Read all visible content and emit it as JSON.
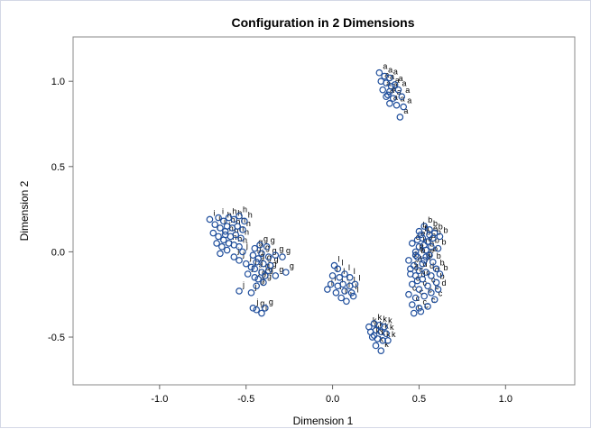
{
  "chart_data": {
    "type": "scatter",
    "title": "Configuration in 2 Dimensions",
    "xlabel": "Dimension 1",
    "ylabel": "Dimension 2",
    "xlim": [
      -1.5,
      1.4
    ],
    "ylim": [
      -0.78,
      1.26
    ],
    "xticks": [
      -1.0,
      -0.5,
      0.0,
      0.5,
      1.0
    ],
    "xtick_labels": [
      "-1.0",
      "-0.5",
      "0.0",
      "0.5",
      "1.0"
    ],
    "yticks": [
      -0.5,
      0.0,
      0.5,
      1.0
    ],
    "ytick_labels": [
      "-0.5",
      "0.0",
      "0.5",
      "1.0"
    ],
    "grid": false,
    "legend": false,
    "marker_color": "#1f4e9c",
    "points": [
      {
        "x": 0.27,
        "y": 1.05,
        "label": "a"
      },
      {
        "x": 0.3,
        "y": 1.03,
        "label": "a"
      },
      {
        "x": 0.33,
        "y": 1.02,
        "label": "a"
      },
      {
        "x": 0.28,
        "y": 1.0,
        "label": "a"
      },
      {
        "x": 0.31,
        "y": 0.99,
        "label": "a"
      },
      {
        "x": 0.36,
        "y": 0.98,
        "label": "a"
      },
      {
        "x": 0.29,
        "y": 0.95,
        "label": "a"
      },
      {
        "x": 0.33,
        "y": 0.94,
        "label": "a"
      },
      {
        "x": 0.38,
        "y": 0.95,
        "label": "a"
      },
      {
        "x": 0.31,
        "y": 0.91,
        "label": "a"
      },
      {
        "x": 0.35,
        "y": 0.9,
        "label": "a"
      },
      {
        "x": 0.4,
        "y": 0.91,
        "label": "a"
      },
      {
        "x": 0.33,
        "y": 0.87,
        "label": "a"
      },
      {
        "x": 0.37,
        "y": 0.86,
        "label": "a"
      },
      {
        "x": 0.41,
        "y": 0.85,
        "label": "a"
      },
      {
        "x": 0.39,
        "y": 0.79,
        "label": "a"
      },
      {
        "x": 0.32,
        "y": 0.92,
        "label": "a"
      },
      {
        "x": 0.34,
        "y": 0.97,
        "label": "a"
      },
      {
        "x": 0.5,
        "y": 0.12,
        "label": "b"
      },
      {
        "x": 0.53,
        "y": 0.15,
        "label": "b"
      },
      {
        "x": 0.56,
        "y": 0.13,
        "label": "b"
      },
      {
        "x": 0.59,
        "y": 0.11,
        "label": "b"
      },
      {
        "x": 0.52,
        "y": 0.08,
        "label": "b"
      },
      {
        "x": 0.55,
        "y": 0.06,
        "label": "b"
      },
      {
        "x": 0.58,
        "y": 0.08,
        "label": "b"
      },
      {
        "x": 0.62,
        "y": 0.09,
        "label": "b"
      },
      {
        "x": 0.5,
        "y": 0.03,
        "label": "b"
      },
      {
        "x": 0.54,
        "y": 0.01,
        "label": "b"
      },
      {
        "x": 0.57,
        "y": 0.03,
        "label": "b"
      },
      {
        "x": 0.61,
        "y": 0.02,
        "label": "b"
      },
      {
        "x": 0.49,
        "y": -0.03,
        "label": "b"
      },
      {
        "x": 0.53,
        "y": -0.05,
        "label": "b"
      },
      {
        "x": 0.58,
        "y": -0.06,
        "label": "b"
      },
      {
        "x": 0.6,
        "y": -0.1,
        "label": "b"
      },
      {
        "x": 0.62,
        "y": -0.13,
        "label": "b"
      },
      {
        "x": 0.6,
        "y": -0.18,
        "label": "b"
      },
      {
        "x": 0.56,
        "y": -0.02,
        "label": "b"
      },
      {
        "x": 0.51,
        "y": 0.1,
        "label": "b"
      },
      {
        "x": 0.45,
        "y": -0.1,
        "label": "c"
      },
      {
        "x": 0.48,
        "y": -0.14,
        "label": "c"
      },
      {
        "x": 0.52,
        "y": -0.16,
        "label": "c"
      },
      {
        "x": 0.46,
        "y": -0.19,
        "label": "c"
      },
      {
        "x": 0.5,
        "y": -0.22,
        "label": "c"
      },
      {
        "x": 0.55,
        "y": -0.2,
        "label": "c"
      },
      {
        "x": 0.44,
        "y": -0.25,
        "label": "c"
      },
      {
        "x": 0.48,
        "y": -0.27,
        "label": "c"
      },
      {
        "x": 0.53,
        "y": -0.26,
        "label": "c"
      },
      {
        "x": 0.57,
        "y": -0.24,
        "label": "c"
      },
      {
        "x": 0.46,
        "y": -0.31,
        "label": "c"
      },
      {
        "x": 0.5,
        "y": -0.33,
        "label": "c"
      },
      {
        "x": 0.55,
        "y": -0.32,
        "label": "c"
      },
      {
        "x": 0.47,
        "y": -0.36,
        "label": "c"
      },
      {
        "x": 0.51,
        "y": -0.35,
        "label": "c"
      },
      {
        "x": 0.59,
        "y": -0.28,
        "label": "c"
      },
      {
        "x": 0.44,
        "y": -0.05,
        "label": "d"
      },
      {
        "x": 0.47,
        "y": -0.08,
        "label": "d"
      },
      {
        "x": 0.45,
        "y": -0.13,
        "label": "d"
      },
      {
        "x": 0.5,
        "y": -0.11,
        "label": "d"
      },
      {
        "x": 0.54,
        "y": -0.12,
        "label": "d"
      },
      {
        "x": 0.57,
        "y": -0.14,
        "label": "d"
      },
      {
        "x": 0.61,
        "y": -0.22,
        "label": "d"
      },
      {
        "x": 0.48,
        "y": -0.02,
        "label": "d"
      },
      {
        "x": 0.52,
        "y": -0.07,
        "label": "d"
      },
      {
        "x": 0.49,
        "y": -0.17,
        "label": "d"
      },
      {
        "x": 0.46,
        "y": 0.05,
        "label": "e"
      },
      {
        "x": 0.49,
        "y": 0.07,
        "label": "e"
      },
      {
        "x": 0.53,
        "y": 0.04,
        "label": "e"
      },
      {
        "x": 0.56,
        "y": 0.1,
        "label": "e"
      },
      {
        "x": 0.48,
        "y": 0.0,
        "label": "e"
      },
      {
        "x": 0.54,
        "y": -0.03,
        "label": "e"
      },
      {
        "x": -0.45,
        "y": 0.02,
        "label": "g"
      },
      {
        "x": -0.42,
        "y": 0.04,
        "label": "g"
      },
      {
        "x": -0.38,
        "y": 0.03,
        "label": "g"
      },
      {
        "x": -0.46,
        "y": -0.02,
        "label": "g"
      },
      {
        "x": -0.41,
        "y": -0.01,
        "label": "g"
      },
      {
        "x": -0.37,
        "y": -0.03,
        "label": "g"
      },
      {
        "x": -0.33,
        "y": -0.02,
        "label": "g"
      },
      {
        "x": -0.29,
        "y": -0.03,
        "label": "g"
      },
      {
        "x": -0.44,
        "y": -0.06,
        "label": "g"
      },
      {
        "x": -0.4,
        "y": -0.07,
        "label": "g"
      },
      {
        "x": -0.36,
        "y": -0.08,
        "label": "g"
      },
      {
        "x": -0.45,
        "y": -0.1,
        "label": "g"
      },
      {
        "x": -0.41,
        "y": -0.12,
        "label": "g"
      },
      {
        "x": -0.37,
        "y": -0.11,
        "label": "g"
      },
      {
        "x": -0.27,
        "y": -0.12,
        "label": "g"
      },
      {
        "x": -0.43,
        "y": -0.16,
        "label": "g"
      },
      {
        "x": -0.39,
        "y": -0.14,
        "label": "g"
      },
      {
        "x": -0.33,
        "y": -0.14,
        "label": "g"
      },
      {
        "x": -0.44,
        "y": -0.2,
        "label": "g"
      },
      {
        "x": -0.4,
        "y": -0.18,
        "label": "g"
      },
      {
        "x": -0.39,
        "y": -0.33,
        "label": "g"
      },
      {
        "x": -0.44,
        "y": -0.34,
        "label": "g"
      },
      {
        "x": -0.63,
        "y": 0.18,
        "label": "h"
      },
      {
        "x": -0.6,
        "y": 0.2,
        "label": "h"
      },
      {
        "x": -0.57,
        "y": 0.19,
        "label": "h"
      },
      {
        "x": -0.54,
        "y": 0.21,
        "label": "h"
      },
      {
        "x": -0.51,
        "y": 0.18,
        "label": "h"
      },
      {
        "x": -0.61,
        "y": 0.15,
        "label": "h"
      },
      {
        "x": -0.58,
        "y": 0.14,
        "label": "h"
      },
      {
        "x": -0.55,
        "y": 0.15,
        "label": "h"
      },
      {
        "x": -0.52,
        "y": 0.13,
        "label": "h"
      },
      {
        "x": -0.62,
        "y": 0.1,
        "label": "h"
      },
      {
        "x": -0.59,
        "y": 0.09,
        "label": "h"
      },
      {
        "x": -0.56,
        "y": 0.1,
        "label": "h"
      },
      {
        "x": -0.53,
        "y": 0.08,
        "label": "h"
      },
      {
        "x": -0.6,
        "y": 0.05,
        "label": "h"
      },
      {
        "x": -0.57,
        "y": 0.04,
        "label": "h"
      },
      {
        "x": -0.54,
        "y": 0.03,
        "label": "h"
      },
      {
        "x": -0.71,
        "y": 0.19,
        "label": "i"
      },
      {
        "x": -0.68,
        "y": 0.16,
        "label": "i"
      },
      {
        "x": -0.65,
        "y": 0.14,
        "label": "i"
      },
      {
        "x": -0.69,
        "y": 0.11,
        "label": "i"
      },
      {
        "x": -0.66,
        "y": 0.09,
        "label": "i"
      },
      {
        "x": -0.63,
        "y": 0.07,
        "label": "i"
      },
      {
        "x": -0.67,
        "y": 0.05,
        "label": "i"
      },
      {
        "x": -0.64,
        "y": 0.03,
        "label": "i"
      },
      {
        "x": -0.61,
        "y": 0.01,
        "label": "i"
      },
      {
        "x": -0.65,
        "y": -0.01,
        "label": "i"
      },
      {
        "x": -0.62,
        "y": 0.12,
        "label": "i"
      },
      {
        "x": -0.66,
        "y": 0.2,
        "label": "i"
      },
      {
        "x": -0.57,
        "y": -0.03,
        "label": "j"
      },
      {
        "x": -0.54,
        "y": -0.05,
        "label": "j"
      },
      {
        "x": -0.5,
        "y": -0.07,
        "label": "j"
      },
      {
        "x": -0.47,
        "y": -0.09,
        "label": "j"
      },
      {
        "x": -0.43,
        "y": -0.04,
        "label": "j"
      },
      {
        "x": -0.49,
        "y": -0.13,
        "label": "j"
      },
      {
        "x": -0.45,
        "y": -0.15,
        "label": "j"
      },
      {
        "x": -0.54,
        "y": -0.23,
        "label": "j"
      },
      {
        "x": -0.47,
        "y": -0.24,
        "label": "j"
      },
      {
        "x": -0.41,
        "y": -0.36,
        "label": "j"
      },
      {
        "x": -0.46,
        "y": -0.33,
        "label": "j"
      },
      {
        "x": -0.52,
        "y": 0.0,
        "label": "j"
      },
      {
        "x": 0.21,
        "y": -0.44,
        "label": "k"
      },
      {
        "x": 0.24,
        "y": -0.42,
        "label": "k"
      },
      {
        "x": 0.27,
        "y": -0.43,
        "label": "k"
      },
      {
        "x": 0.3,
        "y": -0.44,
        "label": "k"
      },
      {
        "x": 0.22,
        "y": -0.47,
        "label": "k"
      },
      {
        "x": 0.25,
        "y": -0.46,
        "label": "k"
      },
      {
        "x": 0.28,
        "y": -0.47,
        "label": "k"
      },
      {
        "x": 0.31,
        "y": -0.48,
        "label": "k"
      },
      {
        "x": 0.23,
        "y": -0.5,
        "label": "k"
      },
      {
        "x": 0.26,
        "y": -0.51,
        "label": "k"
      },
      {
        "x": 0.29,
        "y": -0.52,
        "label": "k"
      },
      {
        "x": 0.25,
        "y": -0.55,
        "label": "k"
      },
      {
        "x": 0.28,
        "y": -0.58,
        "label": "k"
      },
      {
        "x": 0.32,
        "y": -0.52,
        "label": "k"
      },
      {
        "x": 0.24,
        "y": -0.49,
        "label": "k"
      },
      {
        "x": 0.01,
        "y": -0.08,
        "label": "l"
      },
      {
        "x": 0.03,
        "y": -0.1,
        "label": "l"
      },
      {
        "x": 0.0,
        "y": -0.14,
        "label": "l"
      },
      {
        "x": 0.04,
        "y": -0.15,
        "label": "l"
      },
      {
        "x": 0.07,
        "y": -0.13,
        "label": "l"
      },
      {
        "x": 0.1,
        "y": -0.15,
        "label": "l"
      },
      {
        "x": -0.01,
        "y": -0.19,
        "label": "l"
      },
      {
        "x": 0.03,
        "y": -0.2,
        "label": "l"
      },
      {
        "x": 0.06,
        "y": -0.19,
        "label": "l"
      },
      {
        "x": 0.1,
        "y": -0.2,
        "label": "l"
      },
      {
        "x": 0.13,
        "y": -0.19,
        "label": "l"
      },
      {
        "x": -0.03,
        "y": -0.22,
        "label": "l"
      },
      {
        "x": 0.02,
        "y": -0.24,
        "label": "l"
      },
      {
        "x": 0.07,
        "y": -0.23,
        "label": "l"
      },
      {
        "x": 0.11,
        "y": -0.24,
        "label": "l"
      },
      {
        "x": 0.05,
        "y": -0.27,
        "label": "l"
      },
      {
        "x": 0.08,
        "y": -0.29,
        "label": "l"
      },
      {
        "x": 0.12,
        "y": -0.26,
        "label": "l"
      }
    ]
  }
}
